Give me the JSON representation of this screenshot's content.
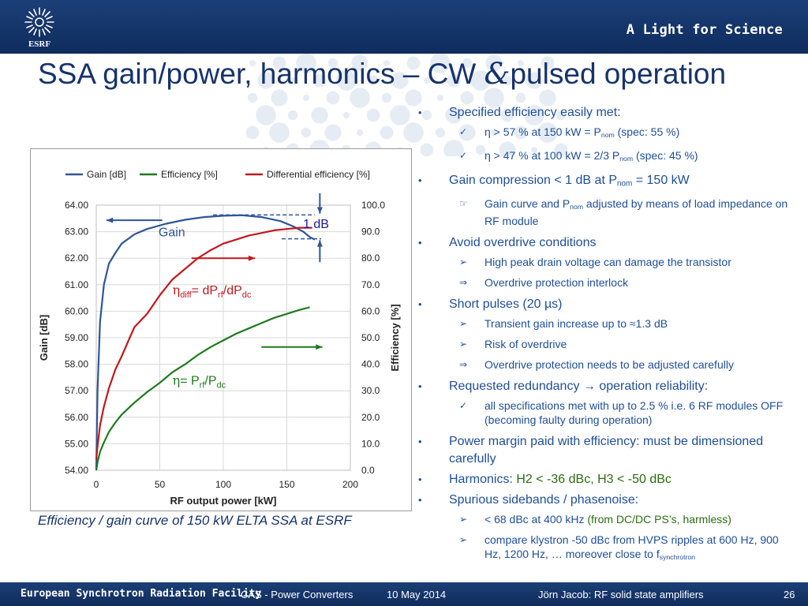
{
  "header": {
    "logo_text": "ESRF",
    "tagline": "A Light for Science"
  },
  "title": {
    "part1": "SSA gain/power, harmonics – CW ",
    "amp": "&",
    "part2": "pulsed operation"
  },
  "caption": "Efficiency / gain curve of  150 kW ELTA SSA at ESRF",
  "bullets": [
    {
      "level": 1,
      "marker": "•",
      "runs": [
        {
          "t": "Specified efficiency easily met:"
        }
      ]
    },
    {
      "level": 2,
      "marker": "✓",
      "runs": [
        {
          "t": "η  > 57 % at 150 kW = P"
        },
        {
          "t": "nom",
          "sub": true
        },
        {
          "t": "        (spec: 55 %)"
        }
      ]
    },
    {
      "level": 2,
      "marker": "✓",
      "runs": [
        {
          "t": "η >  47 % at 100 kW = 2/3 P"
        },
        {
          "t": "nom",
          "sub": true
        },
        {
          "t": "   (spec: 45 %)"
        }
      ]
    },
    {
      "level": 1,
      "marker": "•",
      "runs": [
        {
          "t": "Gain compression < 1 dB at P"
        },
        {
          "t": "nom",
          "sub": true
        },
        {
          "t": " = 150 kW"
        }
      ]
    },
    {
      "level": 2,
      "marker": "☞",
      "runs": [
        {
          "t": "Gain curve and P"
        },
        {
          "t": "nom",
          "sub": true
        },
        {
          "t": " adjusted by means of  load impedance  on RF module"
        }
      ]
    },
    {
      "level": 1,
      "marker": "•",
      "runs": [
        {
          "t": "Avoid overdrive conditions"
        }
      ]
    },
    {
      "level": 2,
      "marker": "➢",
      "runs": [
        {
          "t": "High peak drain voltage can damage the transistor"
        }
      ]
    },
    {
      "level": 2,
      "marker": "⇒",
      "runs": [
        {
          "t": "Overdrive protection interlock"
        }
      ]
    },
    {
      "level": 1,
      "marker": "•",
      "runs": [
        {
          "t": "Short pulses (20 µs)"
        }
      ]
    },
    {
      "level": 2,
      "marker": "➢",
      "runs": [
        {
          "t": "Transient gain increase up to ≈1.3 dB"
        }
      ]
    },
    {
      "level": 2,
      "marker": "➢",
      "runs": [
        {
          "t": "Risk of overdrive"
        }
      ]
    },
    {
      "level": 2,
      "marker": "⇒",
      "runs": [
        {
          "t": "Overdrive protection needs to be adjusted carefully"
        }
      ]
    },
    {
      "level": 1,
      "marker": "•",
      "runs": [
        {
          "t": "Requested redundancy → operation reliability:"
        }
      ]
    },
    {
      "level": 2,
      "marker": "✓",
      "runs": [
        {
          "t": "all specifications met with up to 2.5 % i.e.  6 RF modules OFF (becoming faulty during operation)"
        }
      ]
    },
    {
      "level": 1,
      "marker": "•",
      "runs": [
        {
          "t": "Power margin paid with efficiency: must be dimensioned carefully"
        }
      ]
    },
    {
      "level": 1,
      "marker": "•",
      "runs": [
        {
          "t": "Harmonics: "
        },
        {
          "t": "H2 < -36 dBc, H3 < -50 dBc",
          "green": true
        }
      ]
    },
    {
      "level": 1,
      "marker": "•",
      "runs": [
        {
          "t": "Spurious sidebands / phasenoise:"
        }
      ]
    },
    {
      "level": 2,
      "marker": "➢",
      "runs": [
        {
          "t": "< 68 dBc at 400 kHz "
        },
        {
          "t": "(from DC/DC PS’s, harmless)",
          "green": true
        }
      ]
    },
    {
      "level": 2,
      "marker": "➢",
      "runs": [
        {
          "t": "compare klystron -50 dBc from HVPS ripples at 600 Hz, 900 Hz, 1200 Hz, … moreover close to f"
        },
        {
          "t": "synchrotron",
          "sub": true
        }
      ]
    }
  ],
  "footer": {
    "institution": "European Synchrotron Radiation Facility",
    "event": "CAS - Power Converters",
    "date": "10 May 2014",
    "author": "Jörn Jacob:  RF solid state amplifiers",
    "page": "26"
  },
  "colors": {
    "gain": "#2f5597",
    "efficiency": "#1e7a1e",
    "diff_efficiency": "#c0191e",
    "annotation_blue": "#2f5597",
    "title": "#17336b"
  },
  "chart_data": {
    "type": "line",
    "xlabel": "RF output power [kW]",
    "ylabel": "Gain [dB]",
    "y2label": "Efficiency [%]",
    "xlim": [
      0,
      200
    ],
    "xticks": [
      "0",
      "50",
      "100",
      "150",
      "200"
    ],
    "ylim": [
      54,
      64
    ],
    "yticks": [
      "54.00",
      "55.00",
      "56.00",
      "57.00",
      "58.00",
      "59.00",
      "60.00",
      "61.00",
      "62.00",
      "63.00",
      "64.00"
    ],
    "y2lim": [
      0,
      100
    ],
    "y2ticks": [
      "0.0",
      "10.0",
      "20.0",
      "30.0",
      "40.0",
      "50.0",
      "60.0",
      "70.0",
      "80.0",
      "90.0",
      "100.0"
    ],
    "grid": true,
    "legend_position": "top",
    "series": [
      {
        "name": "Gain [dB]",
        "axis": "left",
        "color": "#2f5597",
        "x": [
          0,
          1,
          3,
          6,
          10,
          15,
          20,
          30,
          40,
          55,
          70,
          85,
          100,
          115,
          130,
          145,
          155,
          163,
          168,
          172
        ],
        "y": [
          54.0,
          57.0,
          59.6,
          61.0,
          61.8,
          62.2,
          62.55,
          62.9,
          63.1,
          63.3,
          63.45,
          63.55,
          63.6,
          63.62,
          63.55,
          63.4,
          63.2,
          63.0,
          62.8,
          62.7
        ]
      },
      {
        "name": "Efficiency [%]",
        "axis": "right",
        "color": "#1e7a1e",
        "x": [
          0,
          1,
          3,
          6,
          10,
          15,
          20,
          30,
          40,
          50,
          60,
          70,
          80,
          90,
          100,
          110,
          120,
          130,
          140,
          150,
          160,
          168
        ],
        "y": [
          0,
          3,
          7,
          10.5,
          14.5,
          18,
          21,
          25.5,
          29.5,
          33,
          37,
          40,
          43.5,
          46.5,
          49,
          51.5,
          53.5,
          55.5,
          57.5,
          59,
          60.5,
          61.5
        ]
      },
      {
        "name": "Differential efficiency [%]",
        "axis": "right",
        "color": "#c0191e",
        "x": [
          0,
          1,
          3,
          6,
          10,
          15,
          20,
          30,
          40,
          50,
          60,
          70,
          80,
          90,
          100,
          110,
          120,
          130,
          140,
          150,
          160,
          170
        ],
        "y": [
          4,
          9,
          17,
          24,
          31,
          38,
          43,
          54,
          59,
          66,
          72,
          76,
          80,
          83,
          85.5,
          87,
          88.5,
          89.5,
          90.5,
          91,
          91.5,
          91.5
        ]
      }
    ],
    "annotations": {
      "gain_label": "Gain",
      "compression_label": "1 dB",
      "diff_eff_label": {
        "eta": "η",
        "sub1": "diff",
        "mid": " = dP",
        "sub2": "rf",
        "mid2": "/dP",
        "sub3": "dc"
      },
      "eff_label": {
        "eta": "η",
        "mid": " = P",
        "sub1": "rf",
        "mid2": "/P",
        "sub2": "dc"
      }
    }
  }
}
